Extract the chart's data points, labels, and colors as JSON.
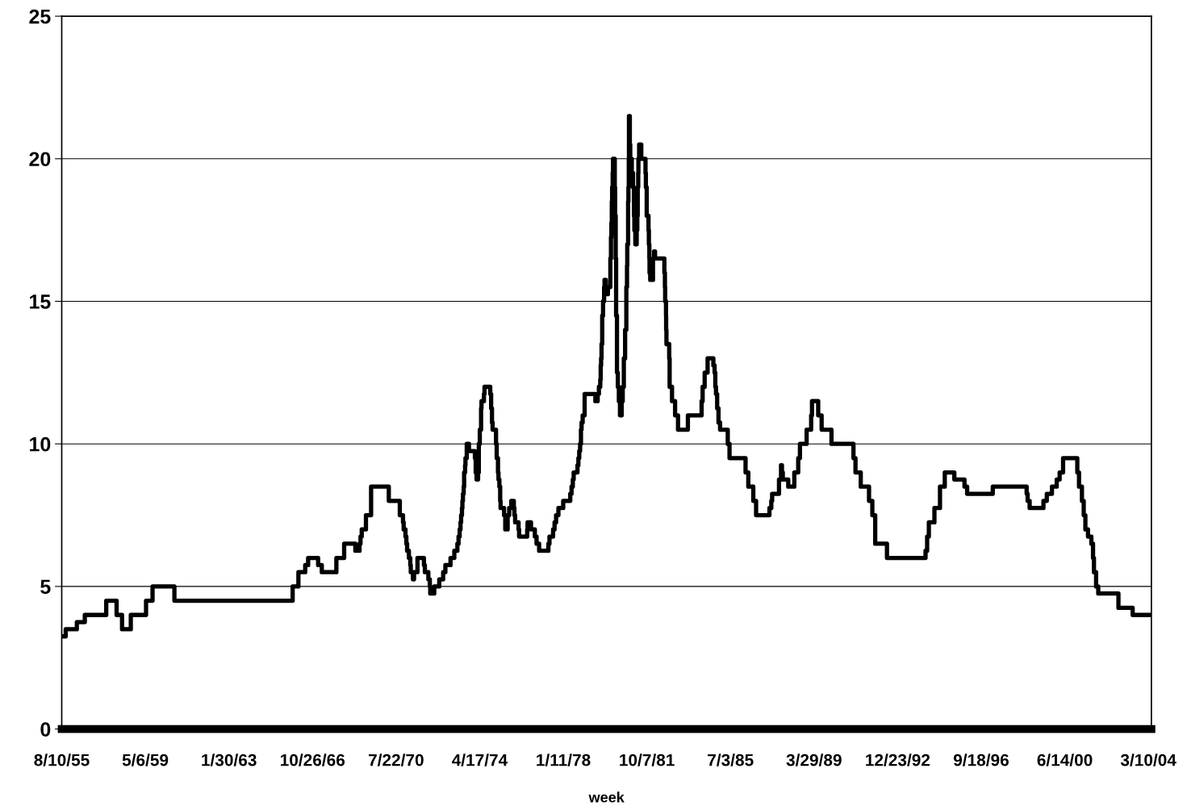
{
  "chart_data": {
    "type": "step",
    "xlabel": "week",
    "x": [
      "1955-08-10",
      "1955-10-14",
      "1956-04-13",
      "1956-08-21",
      "1957-08-06",
      "1958-01-22",
      "1958-04-21",
      "1958-09-11",
      "1959-05-18",
      "1959-09-01",
      "1960-08-23",
      "1965-12-06",
      "1966-03-10",
      "1966-06-29",
      "1966-08-16",
      "1967-01-26",
      "1967-03-27",
      "1967-11-20",
      "1968-03-26",
      "1968-09-25",
      "1968-12-02",
      "1968-12-18",
      "1969-01-07",
      "1969-03-17",
      "1969-06-09",
      "1970-03-25",
      "1970-09-21",
      "1970-11-12",
      "1970-11-23",
      "1970-12-22",
      "1971-01-06",
      "1971-01-18",
      "1971-02-16",
      "1971-03-11",
      "1971-03-19",
      "1971-04-23",
      "1971-05-11",
      "1971-07-06",
      "1971-10-20",
      "1971-11-04",
      "1971-12-31",
      "1972-01-24",
      "1972-01-31",
      "1972-04-05",
      "1972-06-26",
      "1972-08-29",
      "1972-10-04",
      "1972-12-27",
      "1973-02-27",
      "1973-04-18",
      "1973-05-07",
      "1973-05-25",
      "1973-06-08",
      "1973-06-18",
      "1973-07-02",
      "1973-07-09",
      "1973-07-18",
      "1973-07-30",
      "1973-08-06",
      "1973-08-22",
      "1973-08-28",
      "1973-09-18",
      "1973-10-24",
      "1974-01-29",
      "1974-02-11",
      "1974-02-25",
      "1974-03-22",
      "1974-04-03",
      "1974-04-19",
      "1974-05-10",
      "1974-05-17",
      "1974-06-26",
      "1974-07-05",
      "1974-10-07",
      "1974-10-21",
      "1974-11-04",
      "1974-11-14",
      "1975-01-09",
      "1975-01-20",
      "1975-02-10",
      "1975-02-18",
      "1975-03-05",
      "1975-03-18",
      "1975-03-24",
      "1975-05-20",
      "1975-06-09",
      "1975-07-18",
      "1975-08-12",
      "1975-09-15",
      "1975-10-27",
      "1975-11-05",
      "1975-11-17",
      "1976-01-12",
      "1976-01-21",
      "1976-06-01",
      "1976-06-07",
      "1976-08-02",
      "1976-10-04",
      "1976-11-01",
      "1976-12-13",
      "1977-05-13",
      "1977-05-31",
      "1977-07-29",
      "1977-08-22",
      "1977-09-16",
      "1977-10-24",
      "1978-01-10",
      "1978-05-05",
      "1978-05-26",
      "1978-06-16",
      "1978-06-30",
      "1978-08-31",
      "1978-09-15",
      "1978-09-29",
      "1978-10-13",
      "1978-10-27",
      "1978-11-06",
      "1978-11-24",
      "1978-12-26",
      "1979-06-19",
      "1979-07-27",
      "1979-08-16",
      "1979-09-07",
      "1979-09-14",
      "1979-09-21",
      "1979-09-28",
      "1979-10-09",
      "1979-10-23",
      "1979-11-09",
      "1979-11-16",
      "1979-12-07",
      "1980-01-10",
      "1980-02-19",
      "1980-02-29",
      "1980-03-07",
      "1980-03-14",
      "1980-03-19",
      "1980-03-28",
      "1980-04-02",
      "1980-05-01",
      "1980-05-07",
      "1980-05-16",
      "1980-05-23",
      "1980-06-06",
      "1980-06-20",
      "1980-07-07",
      "1980-07-25",
      "1980-08-22",
      "1980-09-08",
      "1980-09-26",
      "1980-10-17",
      "1980-11-06",
      "1980-11-17",
      "1980-11-21",
      "1980-12-05",
      "1980-12-10",
      "1980-12-16",
      "1980-12-19",
      "1981-01-02",
      "1981-01-09",
      "1981-02-03",
      "1981-02-23",
      "1981-03-10",
      "1981-03-17",
      "1981-04-02",
      "1981-04-24",
      "1981-05-04",
      "1981-05-11",
      "1981-05-19",
      "1981-05-22",
      "1981-06-03",
      "1981-07-08",
      "1981-09-15",
      "1981-09-21",
      "1981-10-05",
      "1981-11-03",
      "1981-11-09",
      "1981-11-17",
      "1981-11-20",
      "1981-12-01",
      "1982-01-15",
      "1982-02-02",
      "1982-02-18",
      "1982-07-20",
      "1982-07-29",
      "1982-08-02",
      "1982-08-16",
      "1982-08-18",
      "1982-08-23",
      "1982-10-07",
      "1982-10-14",
      "1982-11-22",
      "1983-01-11",
      "1983-02-28",
      "1983-08-08",
      "1984-03-19",
      "1984-04-05",
      "1984-05-08",
      "1984-06-25",
      "1984-09-27",
      "1984-10-17",
      "1984-10-29",
      "1984-11-09",
      "1984-11-28",
      "1984-12-20",
      "1985-01-15",
      "1985-05-20",
      "1985-06-18",
      "1986-03-07",
      "1986-04-21",
      "1986-07-11",
      "1986-08-26",
      "1987-04-01",
      "1987-05-01",
      "1987-05-15",
      "1987-09-04",
      "1987-10-07",
      "1987-10-22",
      "1987-11-05",
      "1988-02-02",
      "1988-05-11",
      "1988-07-14",
      "1988-08-11",
      "1988-11-28",
      "1989-02-10",
      "1989-02-24",
      "1989-06-05",
      "1989-07-31",
      "1990-01-08",
      "1991-01-02",
      "1991-02-04",
      "1991-05-01",
      "1991-09-13",
      "1991-11-06",
      "1991-12-23",
      "1992-07-02",
      "1994-03-24",
      "1994-04-19",
      "1994-05-17",
      "1994-08-16",
      "1994-11-15",
      "1995-02-01",
      "1995-07-07",
      "1995-12-20",
      "1996-02-01",
      "1997-03-26",
      "1998-09-30",
      "1998-10-16",
      "1998-11-18",
      "1999-07-01",
      "1999-08-25",
      "1999-11-17",
      "2000-02-03",
      "2000-03-22",
      "2000-05-17",
      "2001-01-04",
      "2001-02-01",
      "2001-03-21",
      "2001-04-19",
      "2001-05-16",
      "2001-06-28",
      "2001-08-22",
      "2001-09-18",
      "2001-10-03",
      "2001-11-07",
      "2001-12-12",
      "2002-11-07",
      "2003-06-27",
      "2004-04-28"
    ],
    "series": [
      {
        "color": "#000000",
        "values": [
          3.25,
          3.5,
          3.75,
          4.0,
          4.5,
          4.0,
          3.5,
          4.0,
          4.5,
          5.0,
          4.5,
          5.0,
          5.5,
          5.75,
          6.0,
          5.75,
          5.5,
          6.0,
          6.5,
          6.25,
          6.5,
          6.75,
          7.0,
          7.5,
          8.5,
          8.0,
          7.5,
          7.25,
          7.0,
          6.75,
          6.5,
          6.25,
          6.0,
          5.75,
          5.5,
          5.25,
          5.5,
          6.0,
          5.75,
          5.5,
          5.25,
          5.0,
          4.75,
          5.0,
          5.25,
          5.5,
          5.75,
          6.0,
          6.25,
          6.5,
          6.75,
          7.0,
          7.25,
          7.5,
          7.75,
          8.0,
          8.25,
          8.5,
          9.0,
          9.25,
          9.5,
          10.0,
          9.75,
          9.5,
          9.0,
          8.75,
          9.0,
          10.0,
          10.5,
          11.25,
          11.5,
          11.75,
          12.0,
          11.75,
          11.25,
          10.75,
          10.5,
          10.0,
          9.5,
          9.0,
          8.75,
          8.5,
          8.0,
          7.75,
          7.5,
          7.0,
          7.5,
          7.75,
          8.0,
          7.75,
          7.5,
          7.25,
          7.0,
          6.75,
          7.0,
          7.25,
          7.0,
          6.75,
          6.5,
          6.25,
          6.5,
          6.75,
          7.0,
          7.25,
          7.5,
          7.75,
          8.0,
          8.25,
          8.5,
          8.75,
          9.0,
          9.25,
          9.5,
          9.75,
          10.0,
          10.5,
          10.75,
          11.0,
          11.75,
          11.5,
          11.75,
          12.0,
          12.25,
          12.75,
          13.0,
          13.5,
          14.5,
          15.0,
          15.5,
          15.75,
          15.25,
          15.5,
          16.5,
          17.25,
          17.75,
          18.5,
          19.0,
          19.5,
          20.0,
          19.0,
          18.0,
          16.5,
          14.5,
          12.5,
          12.0,
          11.5,
          11.0,
          11.5,
          12.0,
          13.0,
          14.0,
          15.5,
          16.25,
          17.0,
          18.5,
          19.0,
          20.0,
          21.5,
          20.5,
          20.0,
          19.5,
          19.0,
          18.0,
          17.5,
          17.0,
          17.5,
          18.0,
          19.0,
          19.5,
          20.0,
          20.5,
          20.0,
          19.5,
          19.0,
          18.0,
          17.5,
          17.0,
          16.5,
          16.0,
          15.75,
          16.5,
          16.75,
          16.5,
          16.0,
          15.5,
          15.0,
          14.5,
          14.0,
          13.5,
          13.0,
          12.0,
          11.5,
          11.0,
          10.5,
          11.0,
          11.5,
          12.0,
          12.5,
          13.0,
          12.75,
          12.5,
          12.0,
          11.75,
          11.25,
          10.75,
          10.5,
          10.0,
          9.5,
          9.0,
          8.5,
          8.0,
          7.5,
          7.75,
          8.0,
          8.25,
          8.75,
          9.25,
          9.0,
          8.75,
          8.5,
          9.0,
          9.5,
          10.0,
          10.5,
          11.0,
          11.5,
          11.0,
          10.5,
          10.0,
          9.5,
          9.0,
          8.5,
          8.0,
          7.5,
          6.5,
          6.0,
          6.25,
          6.75,
          7.25,
          7.75,
          8.5,
          9.0,
          8.75,
          8.5,
          8.25,
          8.5,
          8.25,
          8.0,
          7.75,
          8.0,
          8.25,
          8.5,
          8.75,
          9.0,
          9.5,
          9.0,
          8.5,
          8.0,
          7.5,
          7.0,
          6.75,
          6.5,
          6.0,
          5.5,
          5.0,
          4.75,
          4.25,
          4.0,
          4.0
        ]
      }
    ],
    "xlim": [
      "1955-08-10",
      "2004-04-28"
    ],
    "xticks": [
      {
        "value": "1955-08-10",
        "label": "8/10/55"
      },
      {
        "value": "1959-05-06",
        "label": "5/6/59"
      },
      {
        "value": "1963-01-30",
        "label": "1/30/63"
      },
      {
        "value": "1966-10-26",
        "label": "10/26/66"
      },
      {
        "value": "1970-07-22",
        "label": "7/22/70"
      },
      {
        "value": "1974-04-17",
        "label": "4/17/74"
      },
      {
        "value": "1978-01-11",
        "label": "1/11/78"
      },
      {
        "value": "1981-10-07",
        "label": "10/7/81"
      },
      {
        "value": "1985-07-03",
        "label": "7/3/85"
      },
      {
        "value": "1989-03-29",
        "label": "3/29/89"
      },
      {
        "value": "1992-12-23",
        "label": "12/23/92"
      },
      {
        "value": "1996-09-18",
        "label": "9/18/96"
      },
      {
        "value": "2000-06-14",
        "label": "6/14/00"
      },
      {
        "value": "2004-03-10",
        "label": "3/10/04"
      }
    ],
    "ylim": [
      0,
      25
    ],
    "yticks": [
      0,
      5,
      10,
      15,
      20,
      25
    ],
    "grid": "y",
    "legend": false,
    "line_style": "solid",
    "marker": "none"
  }
}
